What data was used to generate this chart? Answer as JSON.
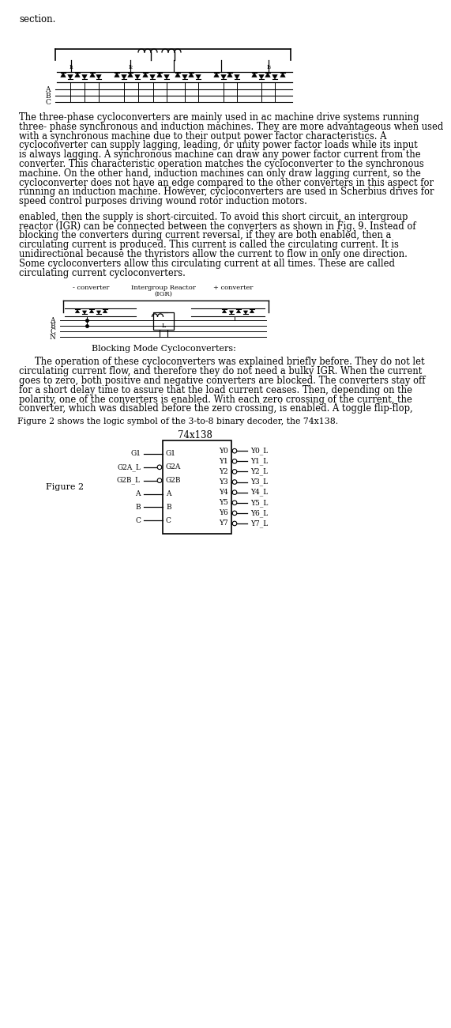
{
  "bg_color": "#ffffff",
  "text_color": "#000000",
  "top_cut_text": "section.",
  "paragraph1": "The three-phase cycloconverters are mainly used in ac machine drive systems running three- phase synchronous and induction machines. They are more advantageous when used with a synchronous machine due to their output power factor characteristics. A cycloconverter can supply lagging, leading, or unity power factor loads while its input is always lagging. A synchronous machine can draw any power factor current from the converter. This characteristic operation matches the cycloconverter to the synchronous machine. On the other hand, induction machines can only draw lagging current, so the cycloconverter does not have an edge compared to the other converters in this aspect for running an induction machine. However, cycloconverters are used in Scherbius drives for speed control purposes driving wound rotor induction motors.",
  "paragraph2": "enabled, then the supply is short-circuited. To avoid this short circuit, an intergroup reactor (IGR) can be connected between the converters as shown in Fig. 9. Instead of blocking the converters during current reversal, if they are both enabled, then a circulating current is produced. This current is called the circulating current. It is unidirectional because the thyristors allow the current to flow in only one direction.  Some cycloconverters allow this circulating current at all times. These are called circulating current cycloconverters.",
  "blocking_caption": "Blocking Mode Cycloconverters:",
  "paragraph3": "The operation of these cycloconverters was explained briefly before. They do not let circulating current flow, and therefore they do not need a bulky IGR. When the current goes to zero, both positive and negative converters are blocked. The converters stay off for a short delay time to assure that the load current ceases. Then, depending on the polarity, one of the converters is enabled. With each zero crossing of the current, the converter, which was disabled before the zero crossing, is enabled. A toggle flip-flop,",
  "figure2_caption": "Figure 2 shows the logic symbol of the 3-to-8 binary decoder, the 74x138.",
  "figure2_label": "Figure 2",
  "chip_title": "74x138",
  "chip_inputs_labels": [
    "G1",
    "G2A",
    "G2B",
    "A",
    "B",
    "C"
  ],
  "chip_inputs_outside": [
    "G1",
    "G2A_L",
    "G2B_L",
    "A",
    "B",
    "C"
  ],
  "chip_inputs_bubble": [
    false,
    true,
    true,
    false,
    false,
    false
  ],
  "chip_outputs_labels": [
    "Y0",
    "Y1",
    "Y2",
    "Y3",
    "Y4",
    "Y5",
    "Y6",
    "Y7"
  ],
  "chip_outputs_outside": [
    "Y0_L",
    "Y1_L",
    "Y2_L",
    "Y3_L",
    "Y4_L",
    "Y5_L",
    "Y6_L",
    "Y7_L"
  ]
}
